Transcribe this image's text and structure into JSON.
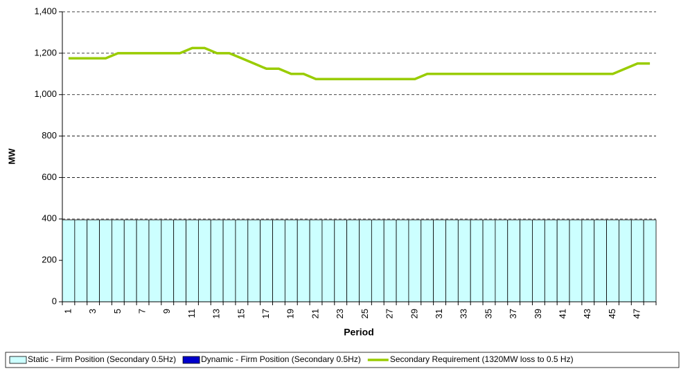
{
  "chart_data": {
    "type": "bar+line",
    "y_label": "MW",
    "x_label": "Period",
    "categories": [
      "1",
      null,
      "3",
      null,
      "5",
      null,
      "7",
      null,
      "9",
      null,
      "11",
      null,
      "13",
      null,
      "15",
      null,
      "17",
      null,
      "19",
      null,
      "21",
      null,
      "23",
      null,
      "25",
      null,
      "27",
      null,
      "29",
      null,
      "31",
      null,
      "33",
      null,
      "35",
      null,
      "37",
      null,
      "39",
      null,
      "41",
      null,
      "43",
      null,
      "45",
      null,
      "47",
      null
    ],
    "series": [
      {
        "name": "Static - Firm Position (Secondary 0.5Hz)",
        "color": "#ccffff",
        "kind": "bar",
        "values": [
          395,
          395,
          395,
          395,
          395,
          395,
          395,
          395,
          395,
          395,
          395,
          395,
          395,
          395,
          395,
          395,
          395,
          395,
          395,
          395,
          395,
          395,
          395,
          395,
          395,
          395,
          395,
          395,
          395,
          395,
          395,
          395,
          395,
          395,
          395,
          395,
          395,
          395,
          395,
          395,
          395,
          395,
          395,
          395,
          395,
          395,
          395,
          395
        ]
      },
      {
        "name": "Dynamic - Firm Position (Secondary 0.5Hz)",
        "color": "#0000cc",
        "kind": "bar",
        "values": [
          0,
          0,
          0,
          0,
          0,
          0,
          0,
          0,
          0,
          0,
          0,
          0,
          0,
          0,
          0,
          0,
          0,
          0,
          0,
          0,
          0,
          0,
          0,
          0,
          0,
          0,
          0,
          0,
          0,
          0,
          0,
          0,
          0,
          0,
          0,
          0,
          0,
          0,
          0,
          0,
          0,
          0,
          0,
          0,
          0,
          0,
          0,
          0
        ]
      },
      {
        "name": "Secondary Requirement (1320MW loss to 0.5 Hz)",
        "color": "#99cc00",
        "kind": "line",
        "values": [
          1175,
          1175,
          1175,
          1175,
          1200,
          1200,
          1200,
          1200,
          1200,
          1200,
          1225,
          1225,
          1200,
          1200,
          1175,
          1150,
          1125,
          1125,
          1100,
          1100,
          1075,
          1075,
          1075,
          1075,
          1075,
          1075,
          1075,
          1075,
          1075,
          1100,
          1100,
          1100,
          1100,
          1100,
          1100,
          1100,
          1100,
          1100,
          1100,
          1100,
          1100,
          1100,
          1100,
          1100,
          1100,
          1125,
          1150,
          1150
        ]
      }
    ],
    "ylim": [
      0,
      1400
    ],
    "yticks": [
      0,
      200,
      400,
      600,
      800,
      {
        "value": 1000,
        "label": "1,000"
      },
      {
        "value": 1200,
        "label": "1,200"
      },
      {
        "value": 1400,
        "label": "1,400"
      }
    ],
    "grid": true,
    "legend": "bottom"
  }
}
